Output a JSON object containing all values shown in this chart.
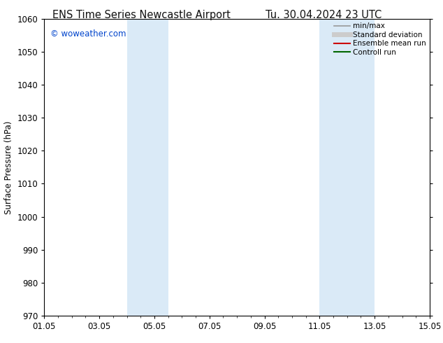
{
  "title_left": "ENS Time Series Newcastle Airport",
  "title_right": "Tu. 30.04.2024 23 UTC",
  "ylabel": "Surface Pressure (hPa)",
  "ylim": [
    970,
    1060
  ],
  "yticks": [
    970,
    980,
    990,
    1000,
    1010,
    1020,
    1030,
    1040,
    1050,
    1060
  ],
  "xlim_start": 0.0,
  "xlim_end": 14.0,
  "xtick_labels": [
    "01.05",
    "03.05",
    "05.05",
    "07.05",
    "09.05",
    "11.05",
    "13.05",
    "15.05"
  ],
  "xtick_positions": [
    0,
    2,
    4,
    6,
    8,
    10,
    12,
    14
  ],
  "shaded_bands": [
    {
      "x_start": 3.0,
      "x_end": 4.5
    },
    {
      "x_start": 10.0,
      "x_end": 12.0
    }
  ],
  "shaded_color": "#daeaf7",
  "watermark_text": "© woweather.com",
  "watermark_color": "#0044cc",
  "legend_entries": [
    {
      "label": "min/max",
      "color": "#999999",
      "lw": 1.2,
      "type": "line"
    },
    {
      "label": "Standard deviation",
      "color": "#cccccc",
      "lw": 5,
      "type": "line"
    },
    {
      "label": "Ensemble mean run",
      "color": "#cc0000",
      "lw": 1.5,
      "type": "line"
    },
    {
      "label": "Controll run",
      "color": "#006600",
      "lw": 1.5,
      "type": "line"
    }
  ],
  "background_color": "#ffffff",
  "title_fontsize": 10.5,
  "axis_label_fontsize": 8.5,
  "tick_fontsize": 8.5,
  "watermark_fontsize": 8.5,
  "legend_fontsize": 7.5
}
